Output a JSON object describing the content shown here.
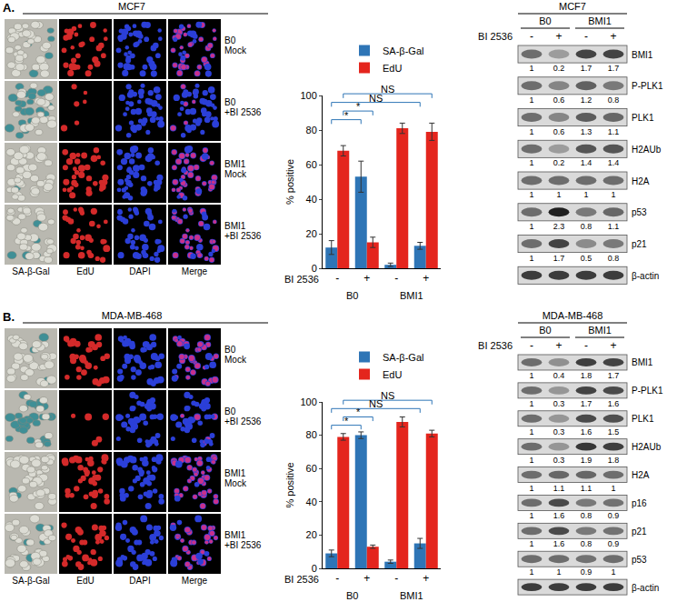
{
  "chart_data": [
    {
      "type": "bar",
      "categories": [
        "-",
        "+",
        "-",
        "+"
      ],
      "category_groups": [
        "B0",
        "B0",
        "BMI1",
        "BMI1"
      ],
      "x_label": "BI 2536",
      "y_label": "% positive",
      "ylim": [
        0,
        100
      ],
      "yticks": [
        0,
        20,
        40,
        60,
        80,
        100
      ],
      "grid": false,
      "legend": "top",
      "series": [
        {
          "name": "SA-β-Gal",
          "color": "#2e75b6",
          "values": [
            12,
            53,
            2,
            13
          ],
          "errors": [
            4,
            9,
            1,
            2
          ]
        },
        {
          "name": "EdU",
          "color": "#e4251d",
          "values": [
            68,
            15,
            81,
            79
          ],
          "errors": [
            3,
            3,
            3,
            5
          ]
        }
      ],
      "comparisons": [
        {
          "series": "SA-β-Gal",
          "from": 0,
          "to": 1,
          "label": "*"
        },
        {
          "series": "EdU",
          "from": 0,
          "to": 1,
          "label": "*"
        },
        {
          "series": "SA-β-Gal",
          "from": 0,
          "to": 3,
          "label": "NS"
        },
        {
          "series": "EdU",
          "from": 0,
          "to": 3,
          "label": "NS"
        }
      ]
    },
    {
      "type": "bar",
      "categories": [
        "-",
        "+",
        "-",
        "+"
      ],
      "category_groups": [
        "B0",
        "B0",
        "BMI1",
        "BMI1"
      ],
      "x_label": "BI 2536",
      "y_label": "% positive",
      "ylim": [
        0,
        100
      ],
      "yticks": [
        0,
        20,
        40,
        60,
        80,
        100
      ],
      "grid": false,
      "legend": "top",
      "series": [
        {
          "name": "SA-β-Gal",
          "color": "#2e75b6",
          "values": [
            9,
            80,
            4,
            15
          ],
          "errors": [
            2,
            2,
            1,
            3
          ]
        },
        {
          "name": "EdU",
          "color": "#e4251d",
          "values": [
            79,
            13,
            88,
            81
          ],
          "errors": [
            2,
            1,
            3,
            2
          ]
        }
      ],
      "comparisons": [
        {
          "series": "SA-β-Gal",
          "from": 0,
          "to": 1,
          "label": "*"
        },
        {
          "series": "EdU",
          "from": 0,
          "to": 1,
          "label": "*"
        },
        {
          "series": "SA-β-Gal",
          "from": 0,
          "to": 3,
          "label": "NS"
        },
        {
          "series": "EdU",
          "from": 0,
          "to": 3,
          "label": "NS"
        }
      ]
    }
  ],
  "panels": [
    {
      "label": "A.",
      "images": {
        "title": "MCF7",
        "columns": [
          "SA-β-Gal",
          "EdU",
          "DAPI",
          "Merge"
        ],
        "rows": [
          [
            "B0",
            "Mock"
          ],
          [
            "B0",
            "+BI 2536"
          ],
          [
            "BMI1",
            "Mock"
          ],
          [
            "BMI1",
            "+BI 2536"
          ]
        ]
      },
      "blot": {
        "title": "MCF7",
        "groups": [
          "B0",
          "BMI1"
        ],
        "treatment": "BI 2536",
        "lanes": [
          "-",
          "+",
          "-",
          "+"
        ],
        "rows": [
          {
            "name": "BMI1",
            "values": [
              1,
              0.2,
              1.7,
              1.7
            ]
          },
          {
            "name": "P-PLK1",
            "values": [
              1,
              0.6,
              1.2,
              0.8
            ]
          },
          {
            "name": "PLK1",
            "values": [
              1,
              0.6,
              1.3,
              1.1
            ]
          },
          {
            "name": "H2AUb",
            "values": [
              1,
              0.2,
              1.4,
              1.4
            ]
          },
          {
            "name": "H2A",
            "values": [
              1,
              1,
              1,
              1
            ]
          },
          {
            "name": "p53",
            "values": [
              1,
              2.3,
              0.8,
              1.1
            ]
          },
          {
            "name": "p21",
            "values": [
              1,
              1.7,
              0.5,
              0.8
            ]
          },
          {
            "name": "β-actin"
          }
        ]
      }
    },
    {
      "label": "B.",
      "images": {
        "title": "MDA-MB-468",
        "columns": [
          "SA-β-Gal",
          "EdU",
          "DAPI",
          "Merge"
        ],
        "rows": [
          [
            "B0",
            "Mock"
          ],
          [
            "B0",
            "+BI 2536"
          ],
          [
            "BMI1",
            "Mock"
          ],
          [
            "BMI1",
            "+BI 2536"
          ]
        ]
      },
      "blot": {
        "title": "MDA-MB-468",
        "groups": [
          "B0",
          "BMI1"
        ],
        "treatment": "BI 2536",
        "lanes": [
          "-",
          "+",
          "-",
          "+"
        ],
        "rows": [
          {
            "name": "BMI1",
            "values": [
              1,
              0.4,
              1.8,
              1.7
            ]
          },
          {
            "name": "P-PLK1",
            "values": [
              1,
              0.3,
              1.7,
              1.6
            ]
          },
          {
            "name": "PLK1",
            "values": [
              1,
              0.3,
              1.6,
              1.5
            ]
          },
          {
            "name": "H2AUb",
            "values": [
              1,
              0.3,
              1.9,
              1.8
            ]
          },
          {
            "name": "H2A",
            "values": [
              1,
              1.1,
              1.1,
              1
            ]
          },
          {
            "name": "p16",
            "values": [
              1,
              1.6,
              0.8,
              0.9
            ]
          },
          {
            "name": "p21",
            "values": [
              1,
              1.6,
              0.8,
              0.9
            ]
          },
          {
            "name": "p53",
            "values": [
              1,
              1,
              0.9,
              1
            ]
          },
          {
            "name": "β-actin"
          }
        ]
      }
    }
  ]
}
